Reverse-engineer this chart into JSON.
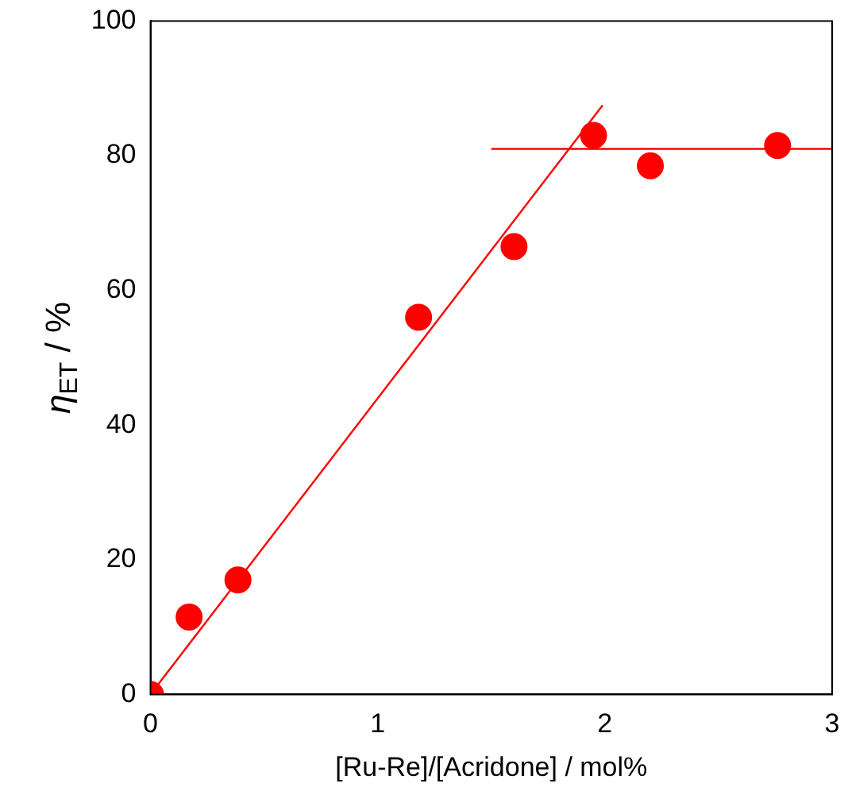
{
  "chart_data": {
    "type": "scatter",
    "xlabel": "[Ru-Re]/[Acridone] / mol%",
    "ylabel": "η$_{ET}$ / %",
    "series": [
      {
        "marker": "circle",
        "color": "#ff0000",
        "x": [
          0,
          0.17,
          0.385,
          1.18,
          1.6,
          1.95,
          2.2,
          2.76
        ],
        "values": [
          0,
          11.5,
          17,
          56,
          66.5,
          83,
          78.5,
          81.5
        ]
      },
      {
        "type": "line",
        "marker": "none",
        "color": "#ff0000",
        "x": [
          0,
          1.99
        ],
        "values": [
          0,
          87.5
        ]
      },
      {
        "type": "line",
        "marker": "none",
        "color": "#ff0000",
        "x": [
          1.5,
          3
        ],
        "values": [
          81,
          81
        ]
      }
    ],
    "xlim": [
      0,
      3
    ],
    "xticks": [
      0,
      1,
      2,
      3
    ],
    "ylim": [
      0,
      100
    ],
    "yticks": [
      0,
      20,
      40,
      60,
      80,
      100
    ],
    "grid": false,
    "legend": false
  }
}
